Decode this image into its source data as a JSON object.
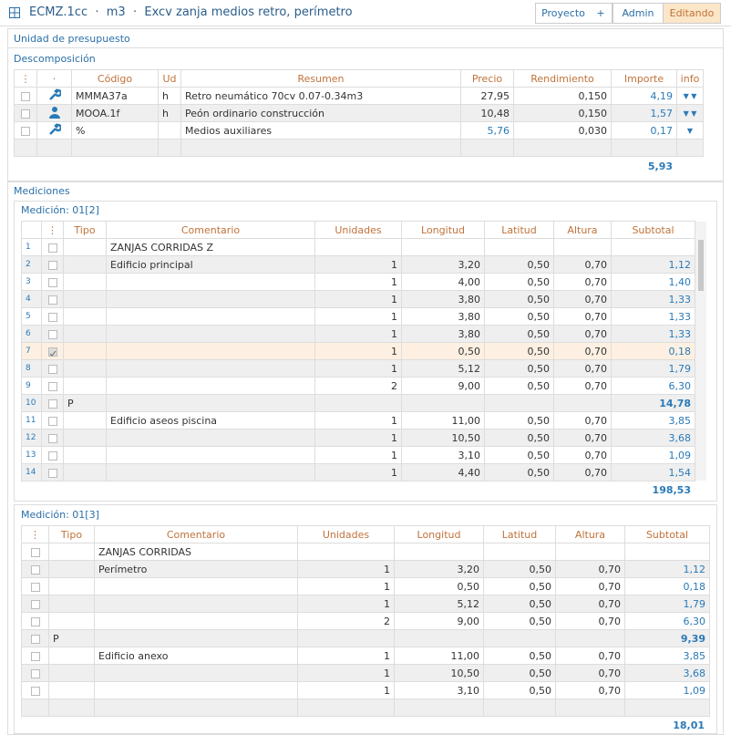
{
  "header": {
    "title": "ECMZ.1cc  ·  m3  ·  Excv zanja medios retro, perímetro",
    "buttons": [
      "Proyecto",
      "+",
      "Admin",
      "Editando"
    ]
  },
  "unit_label": "Unidad de presupuesto",
  "descomposicion": {
    "label": "Descomposición",
    "columns": [
      "⋮",
      "·",
      "Código",
      "Ud",
      "Resumen",
      "Precio",
      "Rendimiento",
      "Importe",
      "info"
    ],
    "rows": [
      {
        "icon": "tool",
        "cells": [
          "MMMA37a",
          "h",
          "Retro neumático 70cv 0.07-0.34m3",
          "27,95",
          "0,150",
          "4,19"
        ]
      },
      {
        "icon": "person",
        "cells": [
          "MOOA.1f",
          "h",
          "Peón ordinario construcción",
          "10,48",
          "0,150",
          "1,57"
        ]
      },
      {
        "icon": "tool",
        "cells": [
          "%",
          null,
          "Medios auxiliares",
          "5,76",
          "0,030",
          "0,17"
        ]
      }
    ],
    "total": "5,93"
  },
  "mediciones_label": "Mediciones",
  "mediciones": [
    {
      "label": "Medición: 01[2]",
      "columns": [
        "⋮",
        "Tipo",
        "Comentario",
        "Unidades",
        "Longitud",
        "Latitud",
        "Altura",
        "Subtotal"
      ],
      "checked_row": 6,
      "rows": [
        [
          "1",
          null,
          "ZANJAS CORRIDAS Z",
          null,
          null,
          null,
          null,
          null
        ],
        [
          "2",
          null,
          "Edificio principal",
          "1",
          "3,20",
          "0,50",
          "0,70",
          "1,12"
        ],
        [
          "3",
          null,
          null,
          "1",
          "4,00",
          "0,50",
          "0,70",
          "1,40"
        ],
        [
          "4",
          null,
          null,
          "1",
          "3,80",
          "0,50",
          "0,70",
          "1,33"
        ],
        [
          "5",
          null,
          null,
          "1",
          "3,80",
          "0,50",
          "0,70",
          "1,33"
        ],
        [
          "6",
          null,
          null,
          "1",
          "3,80",
          "0,50",
          "0,70",
          "1,33"
        ],
        [
          "7",
          null,
          null,
          "1",
          "0,50",
          "0,50",
          "0,70",
          "0,18"
        ],
        [
          "8",
          null,
          null,
          "1",
          "5,12",
          "0,50",
          "0,70",
          "1,79"
        ],
        [
          "9",
          null,
          null,
          "2",
          "9,00",
          "0,50",
          "0,70",
          "6,30"
        ],
        [
          "10",
          "P",
          null,
          null,
          null,
          null,
          null,
          "14,78"
        ],
        [
          "11",
          null,
          "Edificio aseos piscina",
          "1",
          "11,00",
          "0,50",
          "0,70",
          "3,85"
        ],
        [
          "12",
          null,
          null,
          "1",
          "10,50",
          "0,50",
          "0,70",
          "3,68"
        ],
        [
          "13",
          null,
          null,
          "1",
          "3,10",
          "0,50",
          "0,70",
          "1,09"
        ],
        [
          "14",
          null,
          null,
          "1",
          "4,40",
          "0,50",
          "0,70",
          "1,54"
        ]
      ],
      "total": "198,53"
    },
    {
      "label": "Medición: 01[3]",
      "columns": [
        "⋮",
        "Tipo",
        "Comentario",
        "Unidades",
        "Longitud",
        "Latitud",
        "Altura",
        "Subtotal"
      ],
      "rows": [
        [
          null,
          "ZANJAS CORRIDAS",
          null,
          null,
          null,
          null,
          null
        ],
        [
          null,
          "Perímetro",
          "1",
          "3,20",
          "0,50",
          "0,70",
          "1,12"
        ],
        [
          null,
          null,
          "1",
          "0,50",
          "0,50",
          "0,70",
          "0,18"
        ],
        [
          null,
          null,
          "1",
          "5,12",
          "0,50",
          "0,70",
          "1,79"
        ],
        [
          null,
          null,
          "2",
          "9,00",
          "0,50",
          "0,70",
          "6,30"
        ],
        [
          "P",
          null,
          null,
          null,
          null,
          null,
          "9,39"
        ],
        [
          null,
          "Edificio anexo",
          "1",
          "11,00",
          "0,50",
          "0,70",
          "3,85"
        ],
        [
          null,
          null,
          "1",
          "10,50",
          "0,50",
          "0,70",
          "3,68"
        ],
        [
          null,
          null,
          "1",
          "3,10",
          "0,50",
          "0,70",
          "1,09"
        ]
      ],
      "total": "18,01"
    }
  ]
}
